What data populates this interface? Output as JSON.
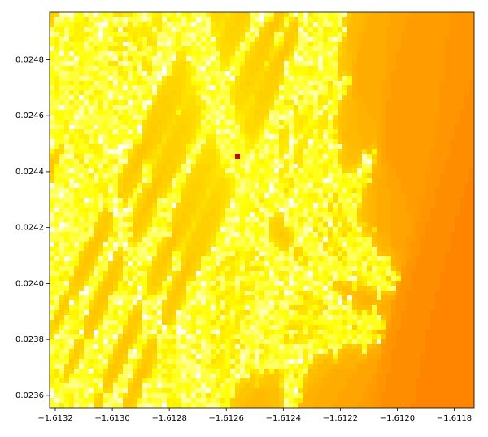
{
  "chart_data": {
    "type": "fractal",
    "xlim": [
      -1.61322,
      -1.61173
    ],
    "ylim": [
      0.023556,
      0.02497
    ],
    "xticks": [
      {
        "value": -1.6132,
        "label": "−1.6132"
      },
      {
        "value": -1.613,
        "label": "−1.6130"
      },
      {
        "value": -1.6128,
        "label": "−1.6128"
      },
      {
        "value": -1.6126,
        "label": "−1.6126"
      },
      {
        "value": -1.6124,
        "label": "−1.6124"
      },
      {
        "value": -1.6122,
        "label": "−1.6122"
      },
      {
        "value": -1.612,
        "label": "−1.6120"
      },
      {
        "value": -1.6118,
        "label": "−1.6118"
      }
    ],
    "yticks": [
      {
        "value": 0.0236,
        "label": "0.0236"
      },
      {
        "value": 0.0238,
        "label": "0.0238"
      },
      {
        "value": 0.024,
        "label": "0.0240"
      },
      {
        "value": 0.0242,
        "label": "0.0242"
      },
      {
        "value": 0.0244,
        "label": "0.0244"
      },
      {
        "value": 0.0246,
        "label": "0.0246"
      },
      {
        "value": 0.0248,
        "label": "0.0248"
      }
    ]
  }
}
